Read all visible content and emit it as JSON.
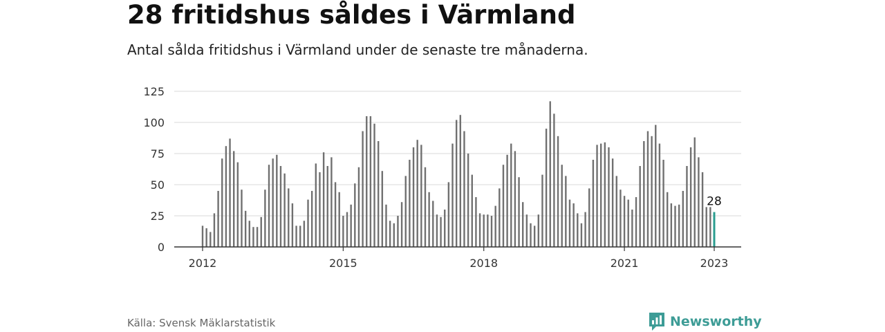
{
  "title": "28 fritidshus såldes i Värmland",
  "subtitle": "Antal sålda fritidshus i Värmland under de senaste tre månaderna.",
  "source": "Källa: Svensk Mäklarstatistik",
  "brand": "Newsworthy",
  "colors": {
    "bars": "#707070",
    "highlight": "#2a9d8f",
    "grid": "#d9d9d9",
    "axis": "#333333",
    "brand": "#3d9c96"
  },
  "chart_data": {
    "type": "bar",
    "title": "28 fritidshus såldes i Värmland",
    "xlabel": "",
    "ylabel": "",
    "ylim": [
      0,
      125
    ],
    "yticks": [
      0,
      25,
      50,
      75,
      100,
      125
    ],
    "xtick_labels": [
      "2012",
      "2015",
      "2018",
      "2021",
      "2023"
    ],
    "grid": true,
    "start": "2012-01",
    "end": "2023-01",
    "values": [
      17,
      15,
      12,
      27,
      45,
      71,
      81,
      87,
      77,
      68,
      46,
      29,
      21,
      16,
      16,
      24,
      46,
      66,
      71,
      74,
      65,
      59,
      47,
      35,
      17,
      17,
      21,
      38,
      45,
      67,
      60,
      76,
      65,
      72,
      52,
      44,
      25,
      28,
      34,
      51,
      64,
      93,
      105,
      105,
      99,
      85,
      61,
      34,
      21,
      19,
      25,
      36,
      57,
      70,
      80,
      86,
      82,
      64,
      44,
      37,
      26,
      24,
      30,
      52,
      83,
      102,
      106,
      93,
      75,
      58,
      40,
      27,
      26,
      26,
      25,
      33,
      47,
      66,
      74,
      83,
      77,
      56,
      36,
      26,
      19,
      17,
      26,
      58,
      95,
      117,
      107,
      89,
      66,
      57,
      38,
      35,
      27,
      19,
      28,
      47,
      70,
      82,
      83,
      84,
      80,
      71,
      57,
      46,
      41,
      38,
      30,
      40,
      65,
      85,
      93,
      89,
      98,
      83,
      70,
      44,
      35,
      33,
      34,
      45,
      65,
      80,
      88,
      72,
      60,
      32,
      32,
      28
    ],
    "highlight": {
      "label": "28",
      "value": 28,
      "period": "2023-01"
    }
  }
}
